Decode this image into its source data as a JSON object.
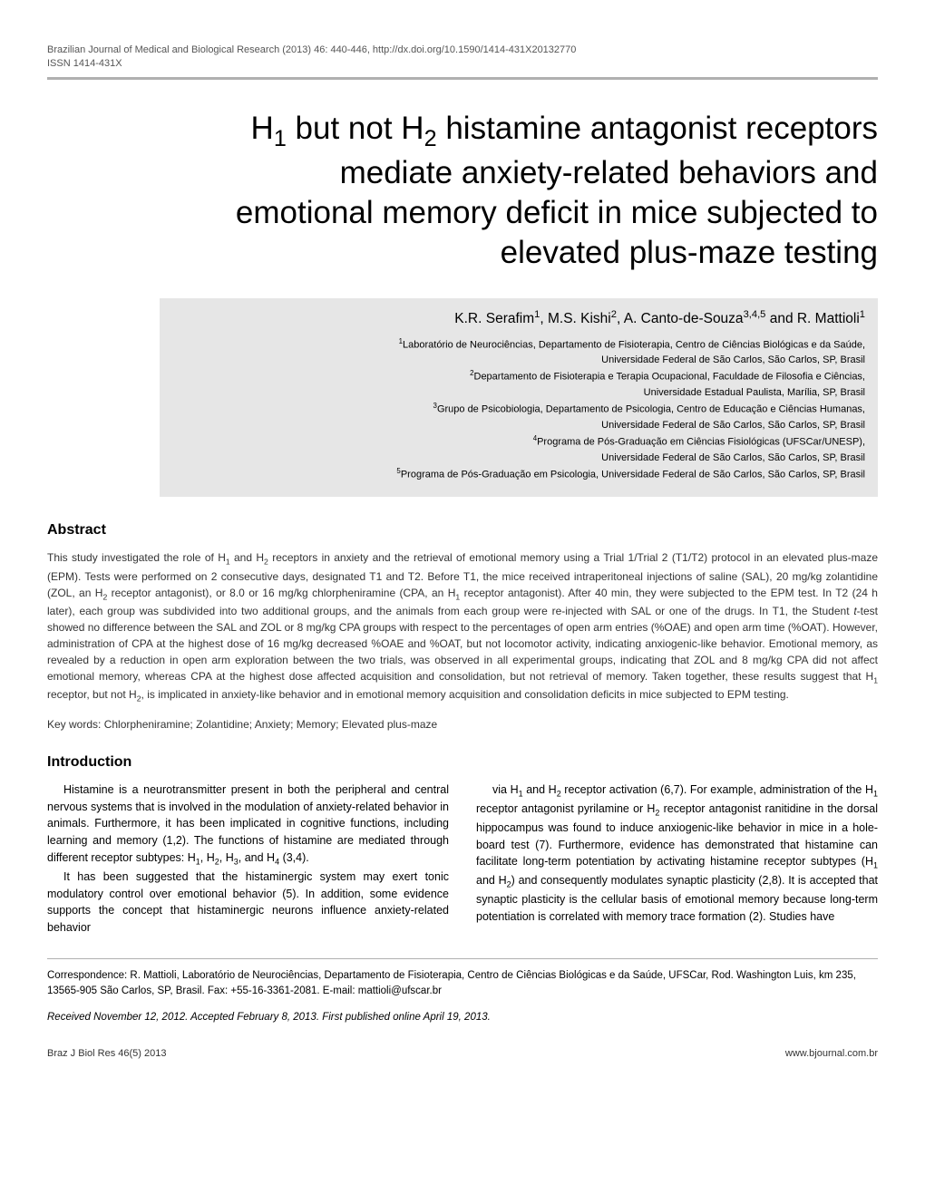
{
  "header": {
    "journal_line": "Brazilian Journal of Medical and Biological Research (2013) 46: 440-446, http://dx.doi.org/10.1590/1414-431X20132770",
    "issn_line": "ISSN 1414-431X"
  },
  "title_html": "H<sub>1</sub> but not H<sub>2</sub> histamine antagonist receptors mediate anxiety-related behaviors and emotional memory deficit in mice subjected to elevated plus-maze testing",
  "authors_html": "K.R. Serafim<sup>1</sup>, M.S. Kishi<sup>2</sup>, A. Canto-de-Souza<sup>3,4,5</sup> and R. Mattioli<sup>1</sup>",
  "affiliations": [
    "<sup>1</sup>Laboratório de Neurociências, Departamento de Fisioterapia, Centro de Ciências Biológicas e da Saúde,",
    "Universidade Federal de São Carlos, São Carlos, SP, Brasil",
    "<sup>2</sup>Departamento de Fisioterapia e Terapia Ocupacional, Faculdade de Filosofia e Ciências,",
    "Universidade Estadual Paulista, Marília, SP, Brasil",
    "<sup>3</sup>Grupo de Psicobiologia, Departamento de Psicologia, Centro de Educação e Ciências Humanas,",
    "Universidade Federal de São Carlos, São Carlos, SP, Brasil",
    "<sup>4</sup>Programa de Pós-Graduação em Ciências Fisiológicas (UFSCar/UNESP),",
    "Universidade Federal de São Carlos, São Carlos, SP, Brasil",
    "<sup>5</sup>Programa de Pós-Graduação em Psicologia, Universidade Federal de São Carlos, São Carlos, SP, Brasil"
  ],
  "abstract": {
    "heading": "Abstract",
    "text_html": "This study investigated the role of H<sub>1</sub> and H<sub>2</sub> receptors in anxiety and the retrieval of emotional memory using a Trial 1/Trial 2 (T1/T2) protocol in an elevated plus-maze (EPM). Tests were performed on 2 consecutive days, designated T1 and T2. Before T1, the mice received intraperitoneal injections of saline (SAL), 20 mg/kg zolantidine (ZOL, an H<sub>2</sub> receptor antagonist), or 8.0 or 16 mg/kg chlorpheniramine (CPA, an H<sub>1</sub> receptor antagonist). After 40 min, they were subjected to the EPM test. In T2 (24 h later), each group was subdivided into two additional groups, and the animals from each group were re-injected with SAL or one of the drugs. In T1, the Student <i>t</i>-test showed no difference between the SAL and ZOL or 8 mg/kg CPA groups with respect to the percentages of open arm entries (%OAE) and open arm time (%OAT). However, administration of CPA at the highest dose of 16 mg/kg decreased %OAE and %OAT, but not locomotor activity, indicating anxiogenic-like behavior. Emotional memory, as revealed by a reduction in open arm exploration between the two trials, was observed in all experimental groups, indicating that ZOL and 8 mg/kg CPA did not affect emotional memory, whereas CPA at the highest dose affected acquisition and consolidation, but not retrieval of memory. Taken together, these results suggest that H<sub>1</sub> receptor, but not H<sub>2</sub>, is implicated in anxiety-like behavior and in emotional memory acquisition and consolidation deficits in mice subjected to EPM testing.",
    "keywords": "Key words: Chlorpheniramine; Zolantidine; Anxiety; Memory; Elevated plus-maze"
  },
  "introduction": {
    "heading": "Introduction",
    "col1_html": "<p>Histamine is a neurotransmitter present in both the peripheral and central nervous systems that is involved in the modulation of anxiety-related behavior in animals. Furthermore, it has been implicated in cognitive functions, including learning and memory (1,2). The functions of histamine are mediated through different receptor subtypes: H<sub>1</sub>, H<sub>2</sub>, H<sub>3</sub>, and H<sub>4</sub> (3,4).</p><p>It has been suggested that the histaminergic system may exert tonic modulatory control over emotional behavior (5). In addition, some evidence supports the concept that histaminergic neurons influence anxiety-related behavior</p>",
    "col2_html": "<p>via H<sub>1</sub> and H<sub>2</sub> receptor activation (6,7). For example, administration of the H<sub>1</sub> receptor antagonist pyrilamine or H<sub>2</sub> receptor antagonist ranitidine in the dorsal hippocampus was found to induce anxiogenic-like behavior in mice in a hole-board test (7). Furthermore, evidence has demonstrated that histamine can facilitate long-term potentiation by activating histamine receptor subtypes (H<sub>1</sub> and H<sub>2</sub>) and consequently modulates synaptic plasticity (2,8). It is accepted that synaptic plasticity is the cellular basis of emotional memory because long-term potentiation is correlated with memory trace formation (2). Studies have</p>"
  },
  "correspondence_html": "Correspondence: R. Mattioli, Laboratório de Neurociências, Departamento de Fisioterapia, Centro de Ciências Biológicas e da Saúde, UFSCar, Rod. Washington Luis, km 235, 13565-905 São Carlos, SP, Brasil. Fax: +55-16-3361-2081. E-mail: mattioli@ufscar.br",
  "received": "Received November 12, 2012. Accepted February 8, 2013. First published online April 19, 2013.",
  "footer": {
    "left": "Braz J Biol Res 46(5) 2013",
    "right": "www.bjournal.com.br"
  }
}
